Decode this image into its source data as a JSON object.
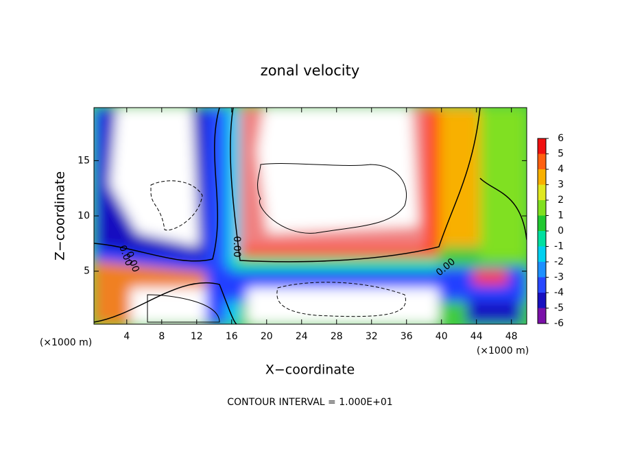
{
  "chart_data": {
    "type": "contour",
    "title": "zonal velocity",
    "x_label": "X−coordinate",
    "y_label": "Z−coordinate",
    "x_unit_left": "(×1000 m)",
    "x_unit_right": "(×1000 m)",
    "footer": "CONTOUR INTERVAL = 1.000E+01",
    "contour_labels": [
      "0.00",
      "0.00",
      "0.00",
      "0.00"
    ],
    "xlim": [
      0.25,
      49.75
    ],
    "xticks": [
      4,
      8,
      12,
      16,
      20,
      24,
      28,
      32,
      36,
      40,
      44,
      48
    ],
    "ylim": [
      0.2,
      19.8
    ],
    "yticks": [
      5,
      10,
      15
    ],
    "colorbar": {
      "levels": [
        -6,
        -5,
        -4,
        -3,
        -2,
        -1,
        0,
        1,
        2,
        3,
        4,
        5,
        6
      ],
      "colors": [
        "#7a10a8",
        "#1810c0",
        "#2848ff",
        "#1e90ff",
        "#00d0f0",
        "#00e0a0",
        "#20c830",
        "#80e020",
        "#e0e820",
        "#f8b000",
        "#ff6010",
        "#f01010"
      ]
    }
  }
}
